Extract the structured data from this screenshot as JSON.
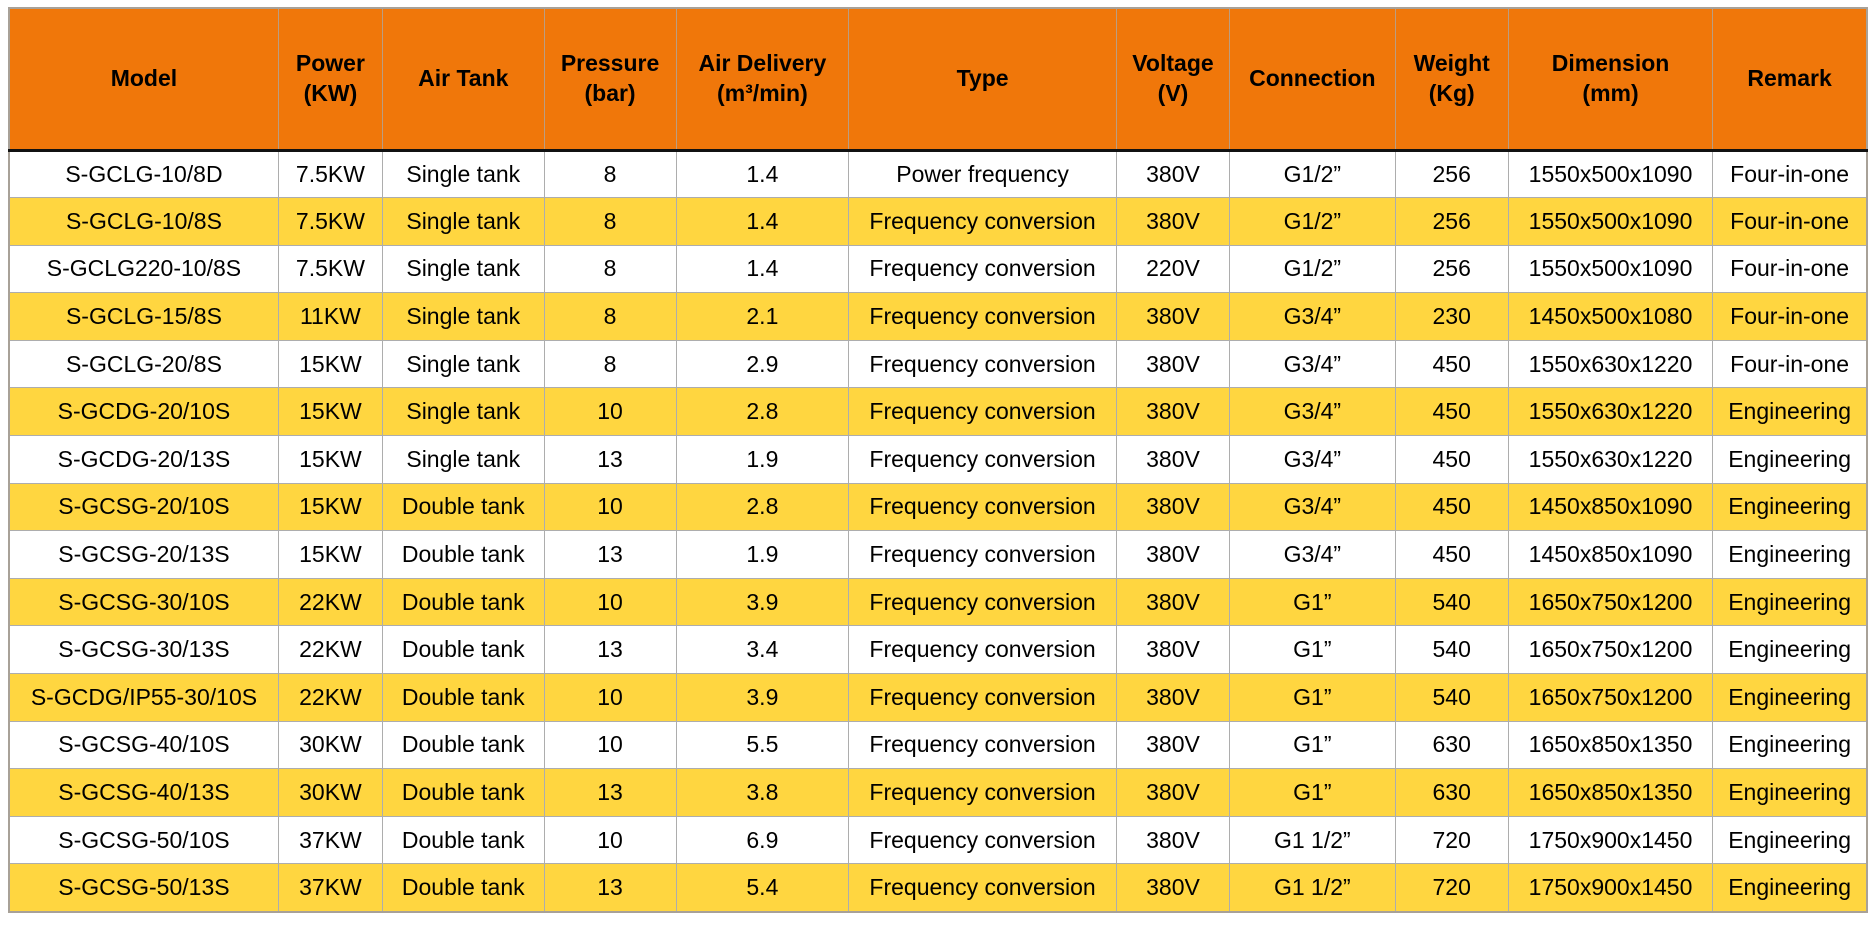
{
  "theme": {
    "header_bg": "#F0770A",
    "row_bg": "#FFFFFF",
    "row_alt_bg": "#FFD640",
    "text_color": "#000000",
    "header_divider": "#111111",
    "grid_line": "#ADADAD",
    "outer_border": "#A8A198"
  },
  "table": {
    "column_keys": [
      "model",
      "power",
      "air-tank",
      "pressure",
      "air-delivery",
      "type",
      "voltage",
      "connection",
      "weight",
      "dimension",
      "remark"
    ],
    "headers": [
      "Model",
      "Power\n(KW)",
      "Air Tank",
      "Pressure\n(bar)",
      "Air Delivery\n(m³/min)",
      "Type",
      "Voltage\n(V)",
      "Connection",
      "Weight\n(Kg)",
      "Dimension\n(mm)",
      "Remark"
    ],
    "rows": [
      [
        "S-GCLG-10/8D",
        "7.5KW",
        "Single tank",
        "8",
        "1.4",
        "Power frequency",
        "380V",
        "G1/2”",
        "256",
        "1550x500x1090",
        "Four-in-one"
      ],
      [
        "S-GCLG-10/8S",
        "7.5KW",
        "Single tank",
        "8",
        "1.4",
        "Frequency conversion",
        "380V",
        "G1/2”",
        "256",
        "1550x500x1090",
        "Four-in-one"
      ],
      [
        "S-GCLG220-10/8S",
        "7.5KW",
        "Single tank",
        "8",
        "1.4",
        "Frequency conversion",
        "220V",
        "G1/2”",
        "256",
        "1550x500x1090",
        "Four-in-one"
      ],
      [
        "S-GCLG-15/8S",
        "11KW",
        "Single tank",
        "8",
        "2.1",
        "Frequency conversion",
        "380V",
        "G3/4”",
        "230",
        "1450x500x1080",
        "Four-in-one"
      ],
      [
        "S-GCLG-20/8S",
        "15KW",
        "Single tank",
        "8",
        "2.9",
        "Frequency conversion",
        "380V",
        "G3/4”",
        "450",
        "1550x630x1220",
        "Four-in-one"
      ],
      [
        "S-GCDG-20/10S",
        "15KW",
        "Single tank",
        "10",
        "2.8",
        "Frequency conversion",
        "380V",
        "G3/4”",
        "450",
        "1550x630x1220",
        "Engineering"
      ],
      [
        "S-GCDG-20/13S",
        "15KW",
        "Single tank",
        "13",
        "1.9",
        "Frequency conversion",
        "380V",
        "G3/4”",
        "450",
        "1550x630x1220",
        "Engineering"
      ],
      [
        "S-GCSG-20/10S",
        "15KW",
        "Double tank",
        "10",
        "2.8",
        "Frequency conversion",
        "380V",
        "G3/4”",
        "450",
        "1450x850x1090",
        "Engineering"
      ],
      [
        "S-GCSG-20/13S",
        "15KW",
        "Double tank",
        "13",
        "1.9",
        "Frequency conversion",
        "380V",
        "G3/4”",
        "450",
        "1450x850x1090",
        "Engineering"
      ],
      [
        "S-GCSG-30/10S",
        "22KW",
        "Double tank",
        "10",
        "3.9",
        "Frequency conversion",
        "380V",
        "G1”",
        "540",
        "1650x750x1200",
        "Engineering"
      ],
      [
        "S-GCSG-30/13S",
        "22KW",
        "Double tank",
        "13",
        "3.4",
        "Frequency conversion",
        "380V",
        "G1”",
        "540",
        "1650x750x1200",
        "Engineering"
      ],
      [
        "S-GCDG/IP55-30/10S",
        "22KW",
        "Double tank",
        "10",
        "3.9",
        "Frequency conversion",
        "380V",
        "G1”",
        "540",
        "1650x750x1200",
        "Engineering"
      ],
      [
        "S-GCSG-40/10S",
        "30KW",
        "Double tank",
        "10",
        "5.5",
        "Frequency conversion",
        "380V",
        "G1”",
        "630",
        "1650x850x1350",
        "Engineering"
      ],
      [
        "S-GCSG-40/13S",
        "30KW",
        "Double tank",
        "13",
        "3.8",
        "Frequency conversion",
        "380V",
        "G1”",
        "630",
        "1650x850x1350",
        "Engineering"
      ],
      [
        "S-GCSG-50/10S",
        "37KW",
        "Double tank",
        "10",
        "6.9",
        "Frequency conversion",
        "380V",
        "G1 1/2”",
        "720",
        "1750x900x1450",
        "Engineering"
      ],
      [
        "S-GCSG-50/13S",
        "37KW",
        "Double tank",
        "13",
        "5.4",
        "Frequency conversion",
        "380V",
        "G1 1/2”",
        "720",
        "1750x900x1450",
        "Engineering"
      ]
    ]
  }
}
